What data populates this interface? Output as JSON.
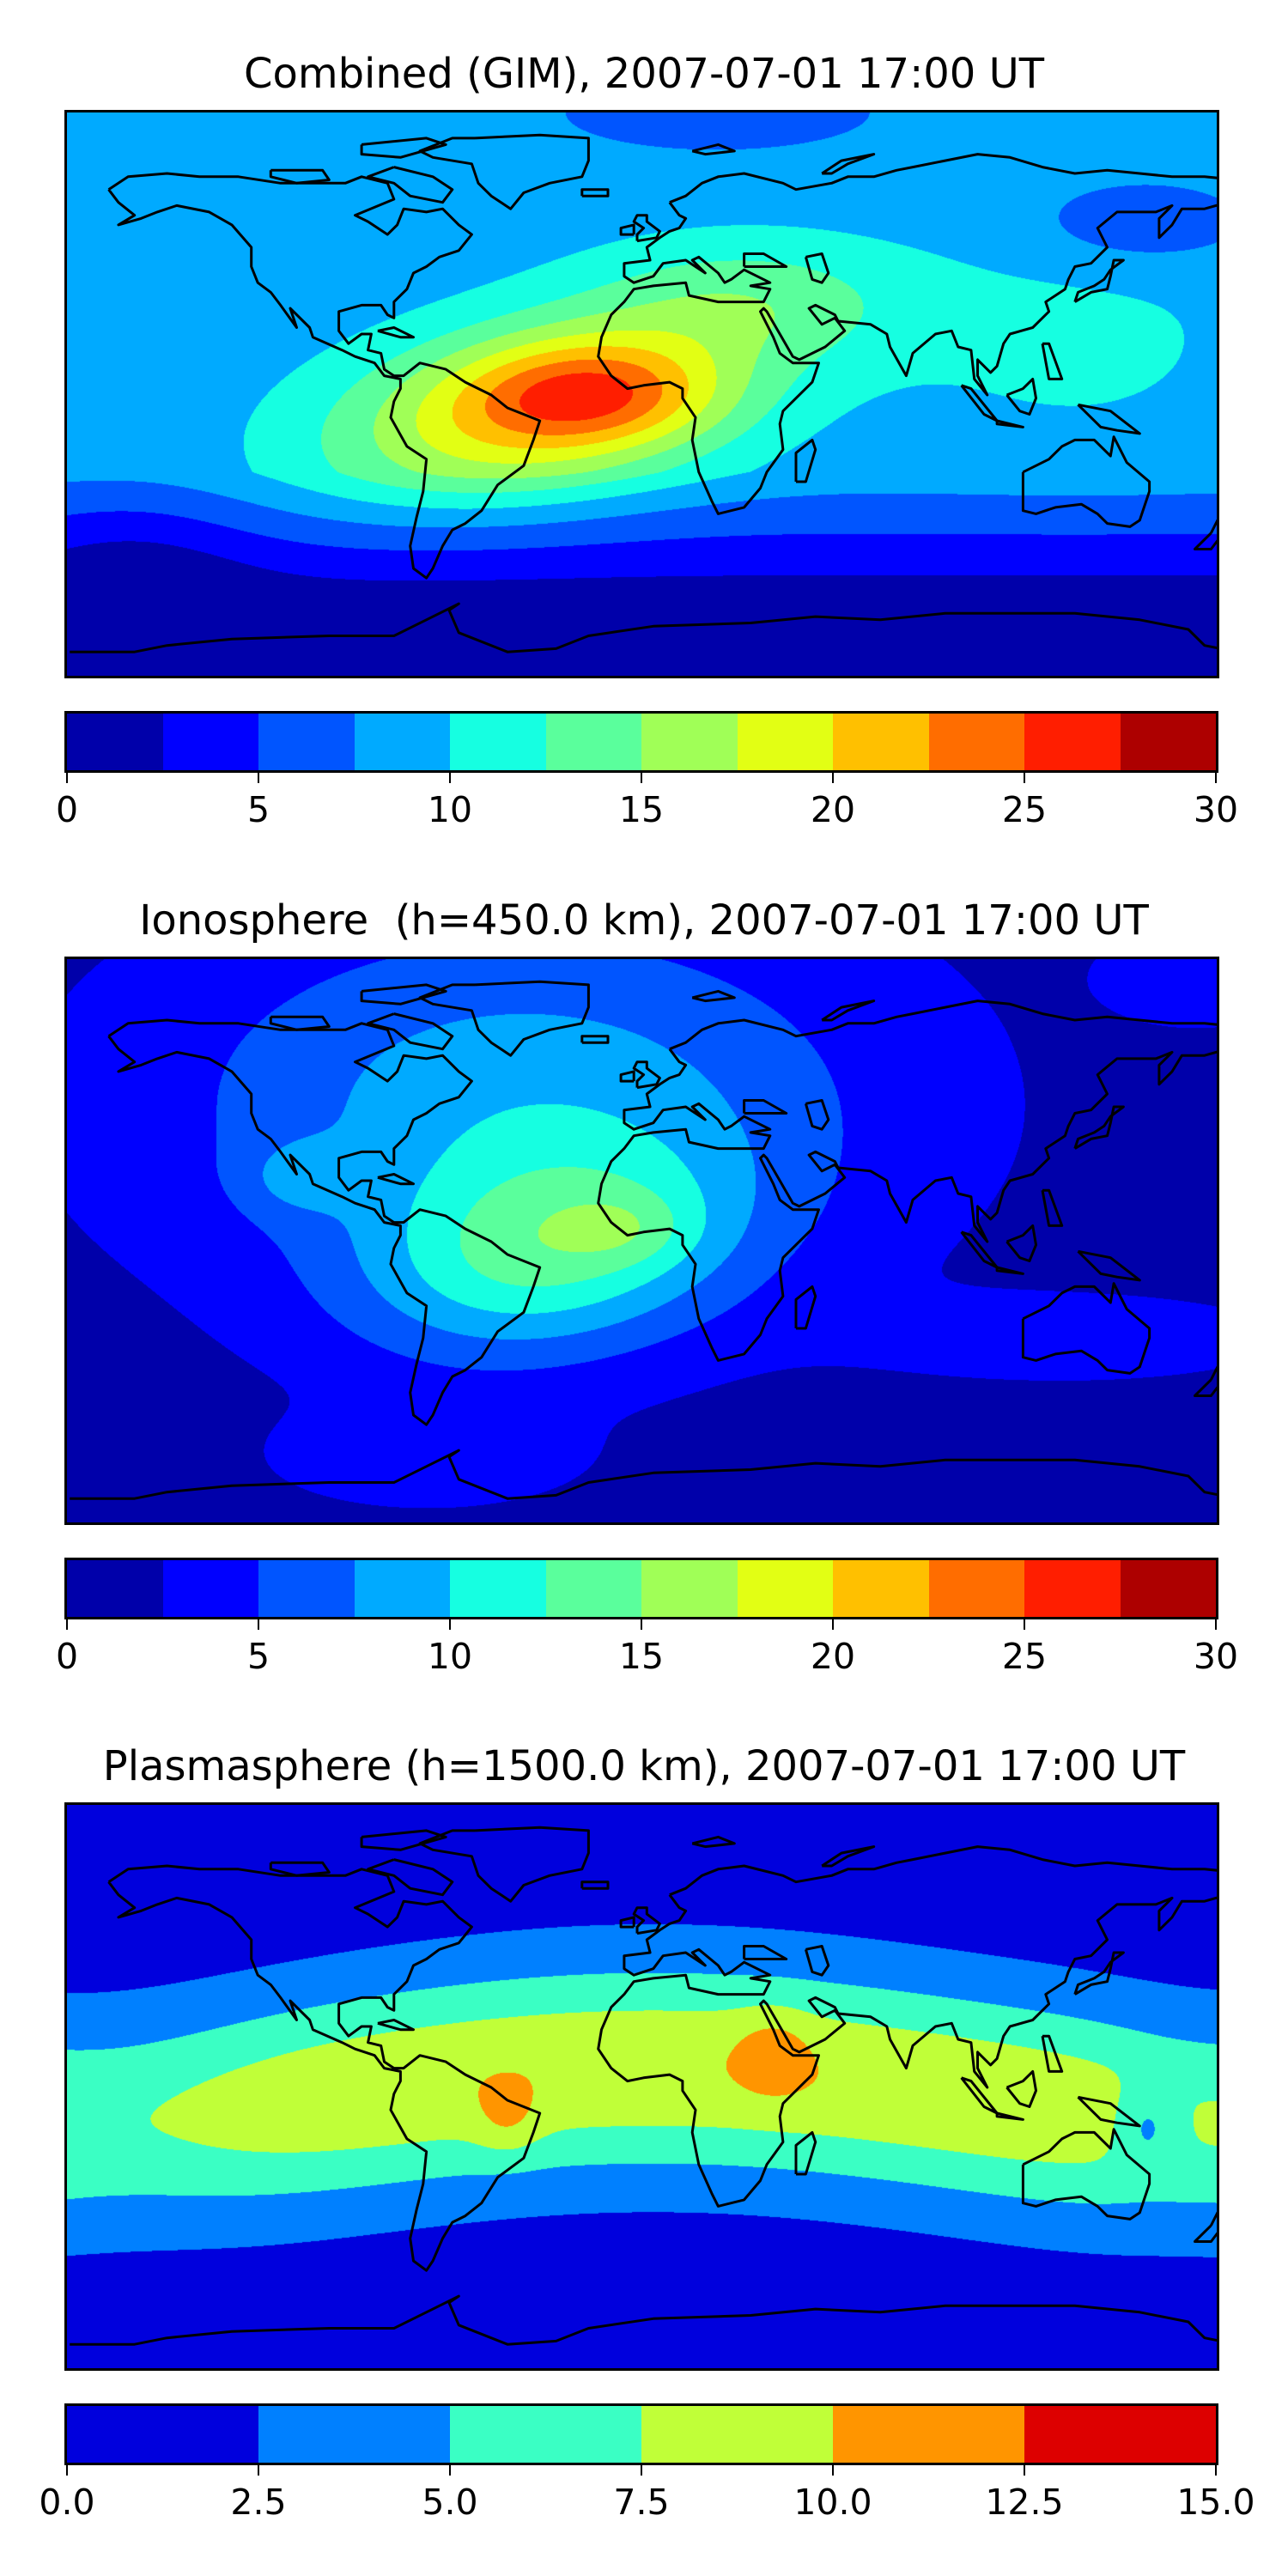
{
  "chart_data": [
    {
      "type": "heatmap",
      "title": "Combined (GIM), 2007-07-01 17:00 UT",
      "projection": "world map with coastlines",
      "value_range": [
        0,
        30
      ],
      "levels": [
        0,
        2.5,
        5,
        7.5,
        10,
        12.5,
        15,
        17.5,
        20,
        22.5,
        25,
        27.5,
        30
      ],
      "colors": [
        "#0000aa",
        "#0000ff",
        "#0055ff",
        "#00aaff",
        "#16ffe1",
        "#5aff9c",
        "#a0ff57",
        "#e2ff14",
        "#ffc000",
        "#ff6d00",
        "#ff1e00",
        "#ad0000"
      ],
      "colorbar_ticks": [
        0,
        5,
        10,
        15,
        20,
        25,
        30
      ],
      "colorbar_tick_labels": [
        "0",
        "5",
        "10",
        "15",
        "20",
        "25",
        "30"
      ],
      "peak_region": "tropical South America / equatorial Atlantic, 25-27.5"
    },
    {
      "type": "heatmap",
      "title": "Ionosphere  (h=450.0 km), 2007-07-01 17:00 UT",
      "projection": "world map with coastlines",
      "value_range": [
        0,
        30
      ],
      "levels": [
        0,
        2.5,
        5,
        7.5,
        10,
        12.5,
        15,
        17.5,
        20,
        22.5,
        25,
        27.5,
        30
      ],
      "colors": [
        "#0000aa",
        "#0000ff",
        "#0055ff",
        "#00aaff",
        "#16ffe1",
        "#5aff9c",
        "#a0ff57",
        "#e2ff14",
        "#ffc000",
        "#ff6d00",
        "#ff1e00",
        "#ad0000"
      ],
      "colorbar_ticks": [
        0,
        5,
        10,
        15,
        20,
        25,
        30
      ],
      "colorbar_tick_labels": [
        "0",
        "5",
        "10",
        "15",
        "20",
        "25",
        "30"
      ],
      "peak_region": "South America / West Africa, 15-20"
    },
    {
      "type": "heatmap",
      "title": "Plasmasphere (h=1500.0 km), 2007-07-01 17:00 UT",
      "projection": "world map with coastlines",
      "value_range": [
        0,
        15
      ],
      "levels": [
        0,
        2.5,
        5,
        7.5,
        10,
        12.5,
        15
      ],
      "colors": [
        "#0000dd",
        "#0080ff",
        "#3affc4",
        "#c0ff38",
        "#ff9500",
        "#dd0000"
      ],
      "colorbar_ticks": [
        0,
        2.5,
        5,
        7.5,
        10,
        12.5,
        15
      ],
      "colorbar_tick_labels": [
        "0.0",
        "2.5",
        "5.0",
        "7.5",
        "10.0",
        "12.5",
        "15.0"
      ],
      "peak_region": "Brazil and East Africa/Red Sea, 10-12.5"
    }
  ]
}
